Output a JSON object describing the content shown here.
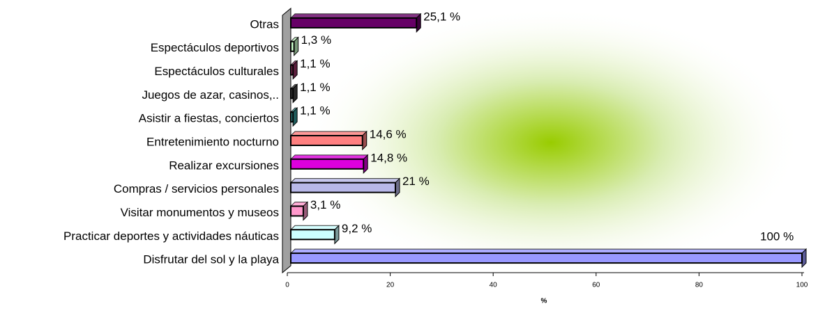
{
  "chart_data": {
    "type": "barh",
    "xlabel": "%",
    "categories": [
      "Otras",
      "Espectáculos deportivos",
      "Espectáculos culturales",
      "Juegos de azar, casinos,..",
      "Asistir a fiestas, conciertos",
      "Entretenimiento nocturno",
      "Realizar excursiones",
      "Compras / servicios personales",
      "Visitar monumentos y museos",
      "Practicar deportes y actividades náuticas",
      "Disfrutar del sol y la playa"
    ],
    "values": [
      25.1,
      1.3,
      1.1,
      1.1,
      1.1,
      14.6,
      14.8,
      21,
      3.1,
      9.2,
      100
    ],
    "value_labels": [
      "25,1 %",
      "1,3  %",
      "1,1  %",
      "1,1  %",
      "1,1 %",
      "14,6 %",
      "14,8 %",
      "21 %",
      "3,1  %",
      "9,2 %",
      "100 %"
    ],
    "colors": [
      "#660066",
      "#ccffcc",
      "#993366",
      "#444444",
      "#339999",
      "#ff8080",
      "#dd00dd",
      "#b8b8e8",
      "#ff99cc",
      "#ccffff",
      "#9999ff"
    ],
    "xlim": [
      0,
      100
    ],
    "xticks": [
      0,
      20,
      40,
      60,
      80,
      100
    ]
  }
}
